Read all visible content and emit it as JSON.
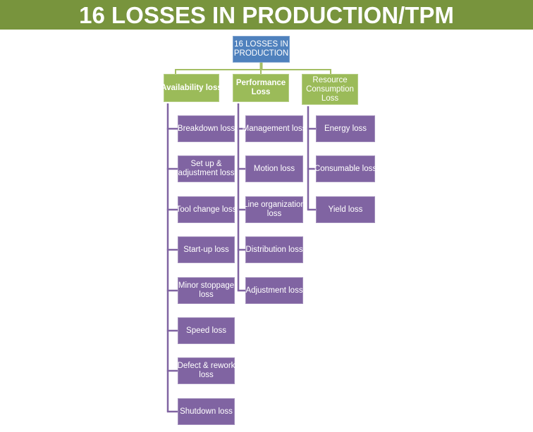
{
  "title": "16 LOSSES IN PRODUCTION/TPM",
  "root": {
    "label": "16 LOSSES IN PRODUCTION"
  },
  "columns": [
    {
      "category": "Availability loss",
      "emphasis": "bold",
      "items": [
        "Breakdown loss",
        "Set up & adjustment loss",
        "Tool change loss",
        "Start-up loss",
        "Minor stoppage loss",
        "Speed loss",
        "Defect & rework loss",
        "Shutdown loss"
      ]
    },
    {
      "category": "Performance Loss",
      "emphasis": "bold",
      "items": [
        "Management loss",
        "Motion loss",
        "Line organization loss",
        "Distribution loss",
        "Adjustment loss"
      ]
    },
    {
      "category": "Resource Consumption Loss",
      "emphasis": "normal",
      "items": [
        "Energy loss",
        "Consumable loss",
        "Yield loss"
      ]
    }
  ],
  "colors": {
    "banner_green": "#78943D",
    "category_green": "#9BBB59",
    "connector_green": "#A4BE63",
    "root_blue": "#4F81BD",
    "leaf_purple": "#8064A2",
    "text": "#FFFFFF"
  }
}
